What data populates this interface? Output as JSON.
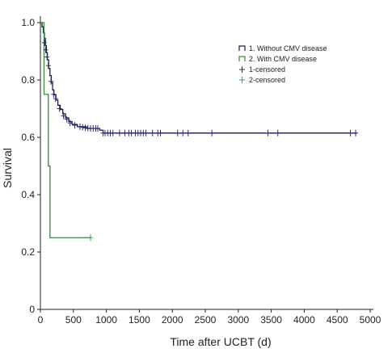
{
  "chart_data": {
    "type": "line",
    "title": "",
    "xlabel": "Time after UCBT (d)",
    "ylabel": "Survival",
    "xlim": [
      0,
      5000
    ],
    "ylim": [
      0,
      1.0
    ],
    "xticks": [
      "0",
      "500",
      "1000",
      "1500",
      "2000",
      "2500",
      "3000",
      "3500",
      "4000",
      "4500",
      "5000"
    ],
    "yticks": [
      "0",
      "0.2",
      "0.4",
      "0.6",
      "0.8",
      "1.0"
    ],
    "grid": false,
    "legend_position": "top-right",
    "legend": [
      "1. Without CMV disease",
      "2. With CMV disease",
      "1-censored",
      "2-censored"
    ],
    "colors": {
      "group1": "#1a1a3a",
      "group2": "#3a8a3a",
      "censor1": "#2a2a6a",
      "censor2": "#4a9a4a"
    },
    "series": [
      {
        "name": "1. Without CMV disease",
        "step": [
          [
            0,
            1.0
          ],
          [
            25,
            0.985
          ],
          [
            45,
            0.965
          ],
          [
            60,
            0.945
          ],
          [
            75,
            0.92
          ],
          [
            90,
            0.895
          ],
          [
            105,
            0.87
          ],
          [
            125,
            0.84
          ],
          [
            145,
            0.815
          ],
          [
            165,
            0.79
          ],
          [
            185,
            0.765
          ],
          [
            205,
            0.748
          ],
          [
            235,
            0.73
          ],
          [
            265,
            0.712
          ],
          [
            300,
            0.697
          ],
          [
            340,
            0.682
          ],
          [
            380,
            0.668
          ],
          [
            430,
            0.655
          ],
          [
            480,
            0.645
          ],
          [
            560,
            0.637
          ],
          [
            700,
            0.631
          ],
          [
            900,
            0.625
          ],
          [
            950,
            0.615
          ],
          [
            4800,
            0.615
          ]
        ],
        "censored": [
          [
            60,
            0.93
          ],
          [
            80,
            0.905
          ],
          [
            100,
            0.88
          ],
          [
            120,
            0.85
          ],
          [
            160,
            0.795
          ],
          [
            200,
            0.75
          ],
          [
            230,
            0.735
          ],
          [
            290,
            0.7
          ],
          [
            350,
            0.675
          ],
          [
            400,
            0.663
          ],
          [
            450,
            0.65
          ],
          [
            520,
            0.642
          ],
          [
            600,
            0.637
          ],
          [
            640,
            0.635
          ],
          [
            680,
            0.633
          ],
          [
            720,
            0.632
          ],
          [
            760,
            0.631
          ],
          [
            800,
            0.631
          ],
          [
            840,
            0.631
          ],
          [
            870,
            0.631
          ],
          [
            950,
            0.615
          ],
          [
            980,
            0.615
          ],
          [
            1020,
            0.615
          ],
          [
            1060,
            0.615
          ],
          [
            1100,
            0.615
          ],
          [
            1200,
            0.615
          ],
          [
            1280,
            0.615
          ],
          [
            1340,
            0.615
          ],
          [
            1380,
            0.615
          ],
          [
            1440,
            0.615
          ],
          [
            1480,
            0.615
          ],
          [
            1520,
            0.615
          ],
          [
            1560,
            0.615
          ],
          [
            1600,
            0.615
          ],
          [
            1700,
            0.615
          ],
          [
            1780,
            0.615
          ],
          [
            1820,
            0.615
          ],
          [
            2080,
            0.615
          ],
          [
            2160,
            0.615
          ],
          [
            2240,
            0.615
          ],
          [
            2600,
            0.615
          ],
          [
            3450,
            0.615
          ],
          [
            3600,
            0.615
          ],
          [
            4700,
            0.615
          ],
          [
            4780,
            0.615
          ]
        ]
      },
      {
        "name": "2. With CMV disease",
        "step": [
          [
            0,
            1.0
          ],
          [
            55,
            0.75
          ],
          [
            120,
            0.5
          ],
          [
            145,
            0.25
          ],
          [
            760,
            0.25
          ]
        ],
        "censored": [
          [
            760,
            0.25
          ]
        ]
      }
    ]
  }
}
